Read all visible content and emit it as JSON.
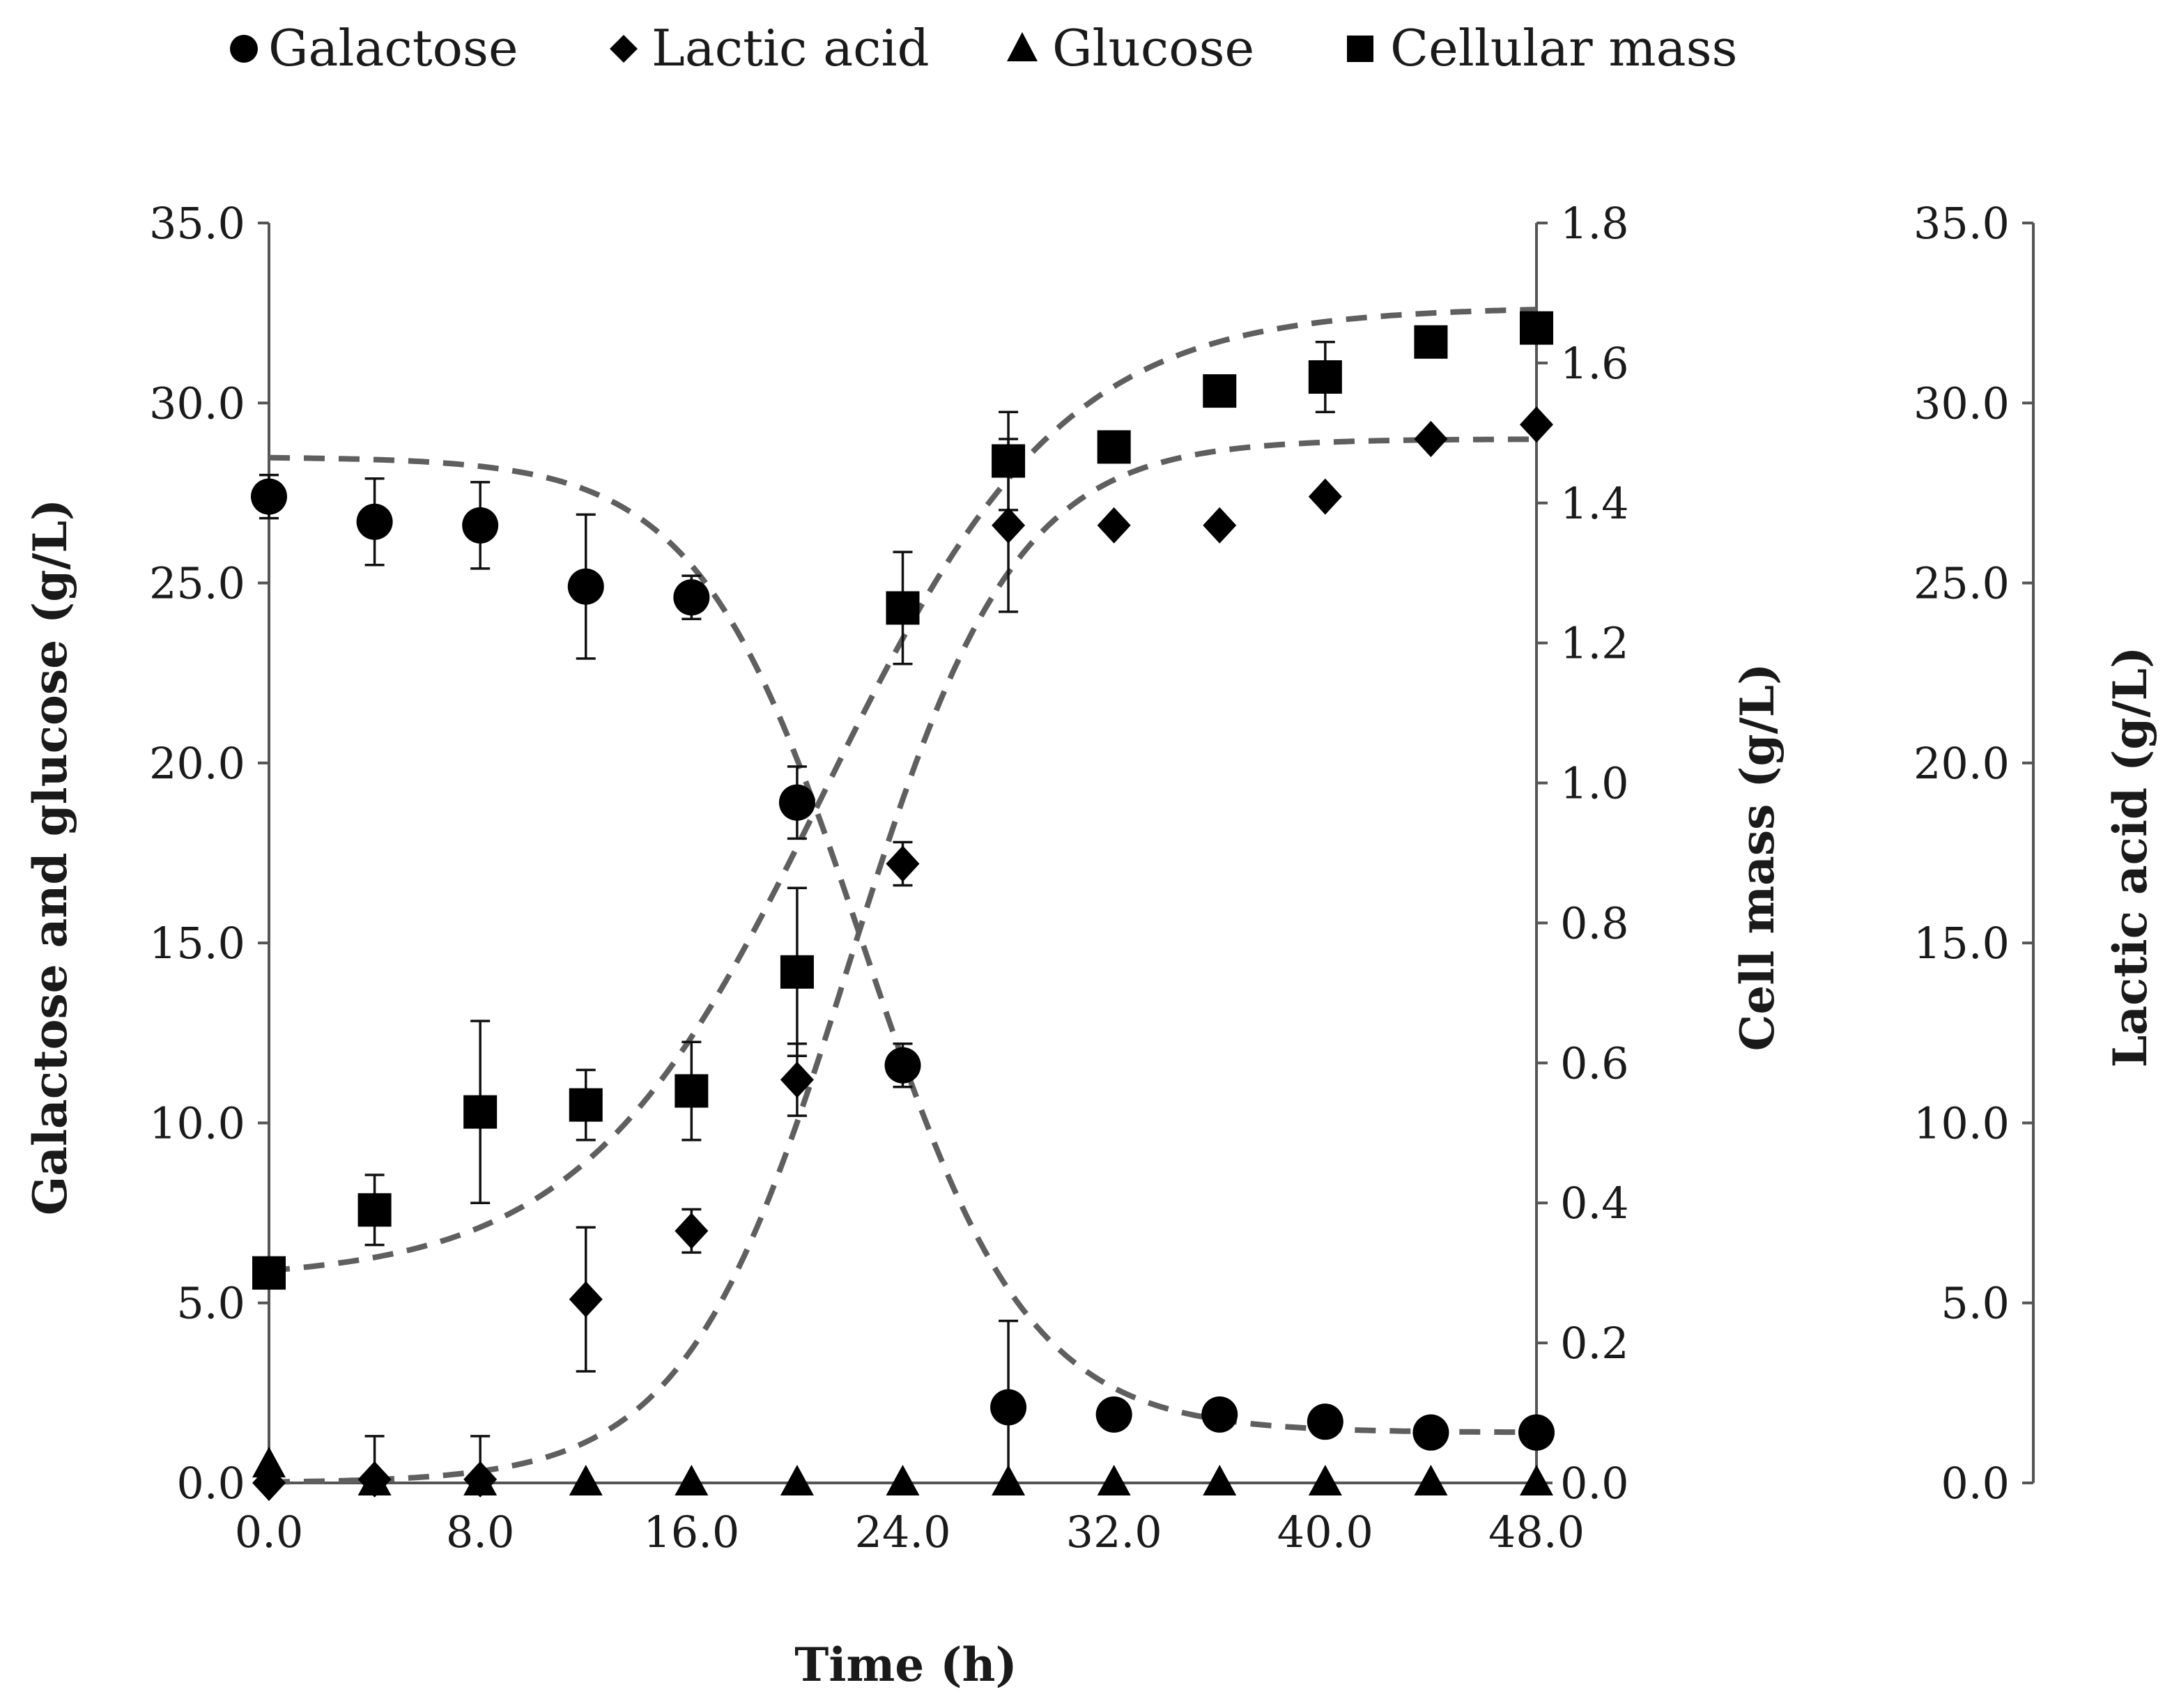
{
  "chart_data": {
    "type": "scatter",
    "title": "",
    "xlabel": "Time (h)",
    "ylabel_left": "Galactose and glucose (g/L)",
    "ylabel_mid": "Cell mass (g/L)",
    "ylabel_right": "Lactic acid (g/L)",
    "xlim": [
      0,
      48
    ],
    "ylim_left": [
      0,
      35
    ],
    "ylim_mid": [
      0,
      1.8
    ],
    "ylim_right": [
      0,
      35
    ],
    "x_ticks": [
      "0.0",
      "8.0",
      "16.0",
      "24.0",
      "32.0",
      "40.0",
      "48.0"
    ],
    "y_left_ticks": [
      "0.0",
      "5.0",
      "10.0",
      "15.0",
      "20.0",
      "25.0",
      "30.0",
      "35.0"
    ],
    "y_mid_ticks": [
      "0.0",
      "0.2",
      "0.4",
      "0.6",
      "0.8",
      "1.0",
      "1.2",
      "1.4",
      "1.6",
      "1.8"
    ],
    "y_right_ticks": [
      "0.0",
      "5.0",
      "10.0",
      "15.0",
      "20.0",
      "25.0",
      "30.0",
      "35.0"
    ],
    "legend_position": "top",
    "series": [
      {
        "name": "Galactose",
        "marker": "circle",
        "axis": "left",
        "x": [
          0,
          4,
          8,
          12,
          16,
          20,
          24,
          28,
          32,
          36,
          40,
          44,
          48
        ],
        "values": [
          27.4,
          26.7,
          26.6,
          24.9,
          24.6,
          18.9,
          11.6,
          2.1,
          1.9,
          1.9,
          1.7,
          1.4,
          1.4
        ],
        "err": [
          0.6,
          1.2,
          1.2,
          2.0,
          0.6,
          1.0,
          0.6,
          2.4,
          0,
          0,
          0,
          0,
          0
        ]
      },
      {
        "name": "Lactic acid",
        "marker": "diamond",
        "axis": "right",
        "x": [
          0,
          4,
          8,
          12,
          16,
          20,
          24,
          28,
          32,
          36,
          40,
          44,
          48
        ],
        "values": [
          0.0,
          0.1,
          0.1,
          5.1,
          7.0,
          11.2,
          17.2,
          26.6,
          26.6,
          26.6,
          27.4,
          29.0,
          29.4
        ],
        "err": [
          0,
          1.2,
          1.2,
          2.0,
          0.6,
          1.0,
          0.6,
          2.4,
          0,
          0,
          0,
          0,
          0
        ]
      },
      {
        "name": "Glucose",
        "marker": "triangle",
        "axis": "left",
        "x": [
          0,
          4,
          8,
          12,
          16,
          20,
          24,
          28,
          32,
          36,
          40,
          44,
          48
        ],
        "values": [
          0.5,
          0,
          0,
          0,
          0,
          0,
          0,
          0,
          0,
          0,
          0,
          0,
          0
        ],
        "err": [
          0,
          0,
          0,
          0,
          0,
          0,
          0,
          0,
          0,
          0,
          0,
          0,
          0
        ]
      },
      {
        "name": "Cellular mass",
        "marker": "square",
        "axis": "mid",
        "x": [
          0,
          4,
          8,
          12,
          16,
          20,
          24,
          28,
          32,
          36,
          40,
          44,
          48
        ],
        "values": [
          0.3,
          0.39,
          0.53,
          0.54,
          0.56,
          0.73,
          1.25,
          1.46,
          1.48,
          1.56,
          1.58,
          1.63,
          1.65
        ],
        "err": [
          0,
          0.05,
          0.13,
          0.05,
          0.07,
          0.12,
          0.08,
          0.07,
          0,
          0.02,
          0.05,
          0,
          0
        ]
      }
    ],
    "fit_curves": [
      {
        "name": "Galactose fit",
        "axis": "left",
        "kind": "decreasing-logistic",
        "y0": 28.5,
        "y_end": 1.4,
        "midpoint": 22.5,
        "rate": 0.32
      },
      {
        "name": "Lactic acid fit",
        "axis": "right",
        "kind": "increasing-logistic",
        "y0": 0,
        "y_end": 29.0,
        "midpoint": 22.0,
        "rate": 0.32
      },
      {
        "name": "Cell mass fit",
        "axis": "mid",
        "kind": "increasing-logistic",
        "y0": 0.29,
        "y_end": 1.68,
        "midpoint": 21.0,
        "rate": 0.22
      }
    ]
  }
}
